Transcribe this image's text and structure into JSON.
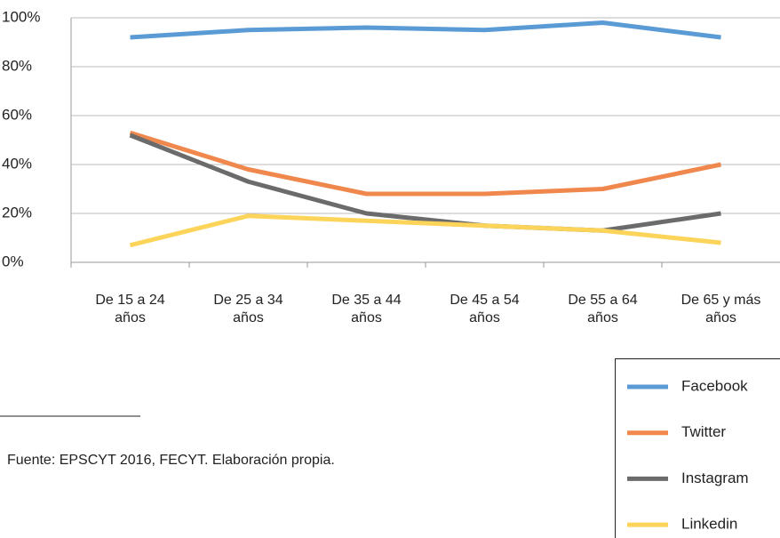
{
  "chart_data": {
    "type": "line",
    "categories": [
      "De 15 a 24 años",
      "De 25 a 34 años",
      "De 35 a 44 años",
      "De 45 a 54 años",
      "De 55 a 64 años",
      "De 65 y más años"
    ],
    "series": [
      {
        "name": "Facebook",
        "color": "#5b9bd5",
        "values": [
          92,
          95,
          96,
          95,
          98,
          92
        ]
      },
      {
        "name": "Twitter",
        "color": "#f0884e",
        "values": [
          53,
          38,
          28,
          28,
          30,
          40
        ]
      },
      {
        "name": "Instagram",
        "color": "#6b6b6b",
        "values": [
          52,
          33,
          20,
          15,
          13,
          20
        ]
      },
      {
        "name": "Linkedin",
        "color": "#fcd45a",
        "values": [
          7,
          19,
          17,
          15,
          13,
          8
        ]
      }
    ],
    "ylim": [
      0,
      100
    ],
    "yticks": [
      {
        "value": 0,
        "label": "0%"
      },
      {
        "value": 20,
        "label": "20%"
      },
      {
        "value": 40,
        "label": "40%"
      },
      {
        "value": 60,
        "label": "60%"
      },
      {
        "value": 80,
        "label": "80%"
      },
      {
        "value": 100,
        "label": "100%"
      }
    ],
    "grid": true,
    "source": "Fuente: EPSCYT 2016, FECYT. Elaboración propia."
  }
}
